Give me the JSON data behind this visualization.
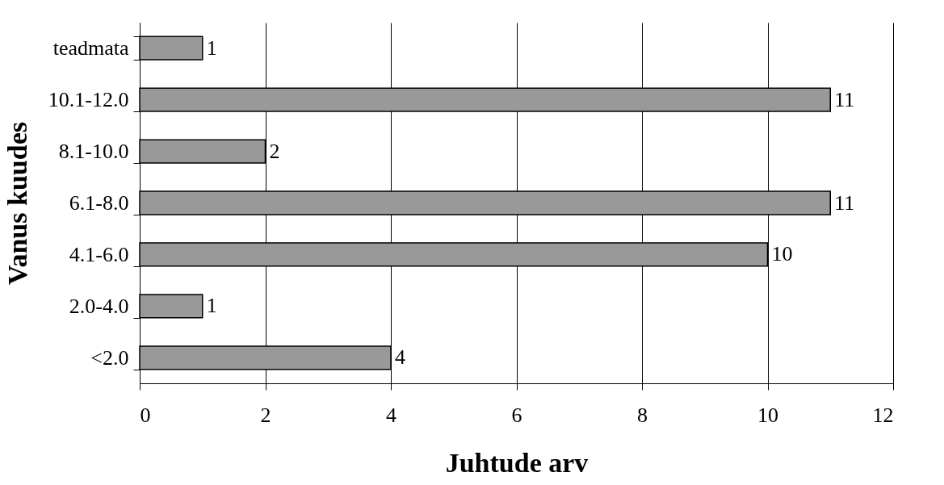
{
  "chart_data": {
    "type": "bar",
    "orientation": "horizontal",
    "xlabel": "Juhtude arv",
    "ylabel": "Vanus kuudes",
    "categories": [
      "teadmata",
      "10.1-12.0",
      "8.1-10.0",
      "6.1-8.0",
      "4.1-6.0",
      "2.0-4.0",
      "<2.0"
    ],
    "values": [
      1,
      11,
      2,
      11,
      10,
      1,
      4
    ],
    "color": "#999999",
    "xlim": [
      0,
      12
    ],
    "xticks": [
      0,
      2,
      4,
      6,
      8,
      10,
      12
    ],
    "grid": "x",
    "data_labels": true
  }
}
